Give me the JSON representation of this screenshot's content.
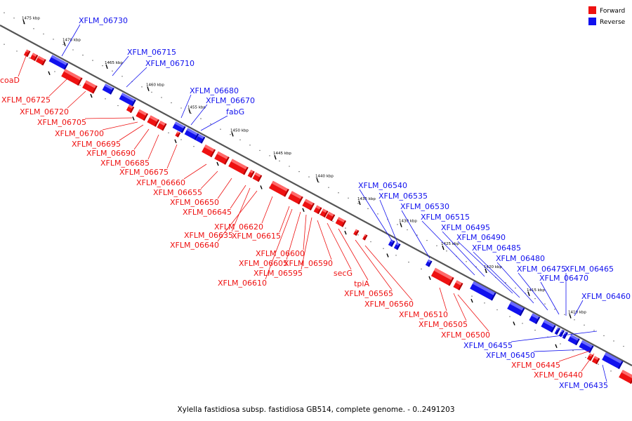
{
  "colors": {
    "forward": "#ee1111",
    "forward_top": "#ff6a6a",
    "forward_side": "#b00000",
    "reverse": "#1111ee",
    "reverse_top": "#6a6aff",
    "reverse_side": "#0000a8",
    "backbone": "#555555"
  },
  "legend": [
    {
      "label": "Forward",
      "strand": "forward"
    },
    {
      "label": "Reverse",
      "strand": "reverse"
    }
  ],
  "ticks": [
    "1475 kbp",
    "1470 kbp",
    "1465 kbp",
    "1460 kbp",
    "1455 kbp",
    "1450 kbp",
    "1445 kbp",
    "1440 kbp",
    "1435 kbp",
    "1430 kbp",
    "1425 kbp",
    "1420 kbp",
    "1415 kbp",
    "1410 kbp"
  ],
  "genes": [
    {
      "name": "XFLM_06730",
      "strand": "reverse"
    },
    {
      "name": "XFLM_06715",
      "strand": "reverse"
    },
    {
      "name": "XFLM_06710",
      "strand": "reverse"
    },
    {
      "name": "XFLM_06680",
      "strand": "reverse"
    },
    {
      "name": "XFLM_06670",
      "strand": "reverse"
    },
    {
      "name": "fabG",
      "strand": "reverse"
    },
    {
      "name": "coaD",
      "strand": "forward"
    },
    {
      "name": "XFLM_06725",
      "strand": "forward"
    },
    {
      "name": "XFLM_06720",
      "strand": "forward"
    },
    {
      "name": "XFLM_06705",
      "strand": "forward"
    },
    {
      "name": "XFLM_06700",
      "strand": "forward"
    },
    {
      "name": "XFLM_06695",
      "strand": "forward"
    },
    {
      "name": "XFLM_06690",
      "strand": "forward"
    },
    {
      "name": "XFLM_06685",
      "strand": "forward"
    },
    {
      "name": "XFLM_06675",
      "strand": "forward"
    },
    {
      "name": "XFLM_06660",
      "strand": "forward"
    },
    {
      "name": "XFLM_06655",
      "strand": "forward"
    },
    {
      "name": "XFLM_06650",
      "strand": "forward"
    },
    {
      "name": "XFLM_06645",
      "strand": "forward"
    },
    {
      "name": "XFLM_06620",
      "strand": "forward"
    },
    {
      "name": "XFLM_06615",
      "strand": "forward"
    },
    {
      "name": "XFLM_06635",
      "strand": "forward"
    },
    {
      "name": "XFLM_06640",
      "strand": "forward"
    },
    {
      "name": "XFLM_06600",
      "strand": "forward"
    },
    {
      "name": "XFLM_06605",
      "strand": "forward"
    },
    {
      "name": "XFLM_06590",
      "strand": "forward"
    },
    {
      "name": "XFLM_06595",
      "strand": "forward"
    },
    {
      "name": "XFLM_06610",
      "strand": "forward"
    },
    {
      "name": "secG",
      "strand": "forward"
    },
    {
      "name": "tpiA",
      "strand": "forward"
    },
    {
      "name": "XFLM_06565",
      "strand": "forward"
    },
    {
      "name": "XFLM_06560",
      "strand": "forward"
    },
    {
      "name": "XFLM_06540",
      "strand": "reverse"
    },
    {
      "name": "XFLM_06535",
      "strand": "reverse"
    },
    {
      "name": "XFLM_06530",
      "strand": "reverse"
    },
    {
      "name": "XFLM_06515",
      "strand": "reverse"
    },
    {
      "name": "XFLM_06495",
      "strand": "reverse"
    },
    {
      "name": "XFLM_06490",
      "strand": "reverse"
    },
    {
      "name": "XFLM_06485",
      "strand": "reverse"
    },
    {
      "name": "XFLM_06480",
      "strand": "reverse"
    },
    {
      "name": "XFLM_06475",
      "strand": "reverse"
    },
    {
      "name": "XFLM_06470",
      "strand": "reverse"
    },
    {
      "name": "XFLM_06465",
      "strand": "reverse"
    },
    {
      "name": "XFLM_06460",
      "strand": "reverse"
    },
    {
      "name": "XFLM_06510",
      "strand": "forward"
    },
    {
      "name": "XFLM_06505",
      "strand": "forward"
    },
    {
      "name": "XFLM_06500",
      "strand": "forward"
    },
    {
      "name": "XFLM_06455",
      "strand": "reverse"
    },
    {
      "name": "XFLM_06450",
      "strand": "reverse"
    },
    {
      "name": "XFLM_06445",
      "strand": "forward"
    },
    {
      "name": "XFLM_06440",
      "strand": "forward"
    },
    {
      "name": "XFLM_06435",
      "strand": "reverse"
    }
  ],
  "caption": "Xylella fastidiosa subsp. fastidiosa GB514, complete genome. - 0..2491203"
}
